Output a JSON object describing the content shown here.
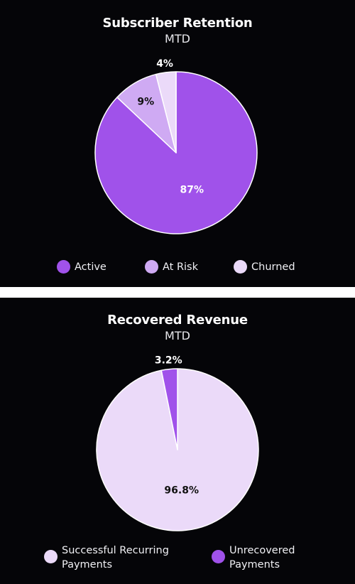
{
  "chart_data": [
    {
      "type": "pie",
      "title": "Subscriber Retention",
      "subtitle": "MTD",
      "categories": [
        "Active",
        "At Risk",
        "Churned"
      ],
      "values": [
        87,
        9,
        4
      ],
      "value_labels": [
        "87%",
        "9%",
        "4%"
      ],
      "colors": [
        "#a052ea",
        "#cfaaf3",
        "#ebdaf9"
      ],
      "label_colors": [
        "#ffffff",
        "#111111",
        "#ffffff"
      ],
      "legend_position": "bottom"
    },
    {
      "type": "pie",
      "title": "Recovered Revenue",
      "subtitle": "MTD",
      "categories": [
        "Successful Recurring Payments",
        "Unrecovered Payments"
      ],
      "legend_labels": [
        "Successful Recurring\nPayments",
        "Unrecovered\nPayments"
      ],
      "values": [
        96.8,
        3.2
      ],
      "value_labels": [
        "96.8%",
        "3.2%"
      ],
      "colors": [
        "#ebdaf9",
        "#a052ea"
      ],
      "label_colors": [
        "#111111",
        "#ffffff"
      ],
      "legend_position": "bottom"
    }
  ]
}
